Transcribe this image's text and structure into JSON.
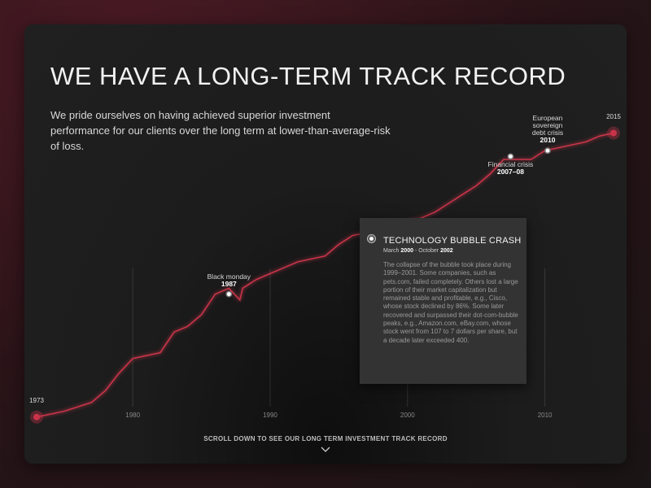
{
  "header": {
    "title": "WE HAVE A LONG-TERM TRACK RECORD",
    "intro": "We pride ourselves on having achieved superior investment performance for our clients over the long term at lower-than-average-risk of loss."
  },
  "chart_data": {
    "type": "line",
    "color": "#c8344a",
    "x": [
      1973,
      1975,
      1977,
      1978,
      1979,
      1980,
      1981,
      1982,
      1983,
      1984,
      1985,
      1986,
      1987,
      1987.8,
      1988,
      1989,
      1990,
      1991,
      1992,
      1993,
      1994,
      1995,
      1996,
      1997,
      1998,
      1999,
      2000,
      2001,
      2002,
      2003,
      2004,
      2005,
      2006,
      2007,
      2008,
      2009,
      2010,
      2011,
      2012,
      2013,
      2014,
      2015
    ],
    "values": [
      2,
      4,
      7,
      11,
      17,
      22,
      23,
      24,
      31,
      33,
      37,
      44,
      46,
      42,
      46,
      49,
      51,
      53,
      55,
      56,
      57,
      61,
      64,
      65,
      67,
      68,
      69,
      70,
      72,
      75,
      78,
      81,
      85,
      90,
      90,
      90,
      93,
      94,
      95,
      96,
      98,
      99
    ],
    "xlim": [
      1973,
      2015
    ],
    "ylim": [
      0,
      100
    ],
    "xticks": [
      1980,
      1990,
      2000,
      2010
    ],
    "events": [
      {
        "name": [
          "Black monday"
        ],
        "date_label": "1987",
        "x": 1987,
        "value": 44
      },
      {
        "name": [
          "Financial crisis"
        ],
        "date_label": "2007–08",
        "x": 2007.5,
        "value": 91
      },
      {
        "name": [
          "European",
          "sovereign",
          "debt crisis"
        ],
        "date_label": "2010",
        "x": 2010.2,
        "value": 93
      }
    ]
  },
  "tooltip": {
    "title": "TECHNOLOGY BUBBLE CRASH",
    "dates": [
      "March ",
      "2000",
      " - October ",
      "2002"
    ],
    "body": "The collapse of the bubble took place during 1999–2001. Some companies, such as pets.com, failed completely. Others lost a large portion of their market capitalization but remained stable and profitable, e.g., Cisco, whose stock declined by 86%. Some later recovered and surpassed their dot-com-bubble peaks, e.g., Amazon.com, eBay.com, whose stock went from 107 to 7 dollars per share, but a decade later exceeded 400."
  },
  "footer": {
    "scroll": "SCROLL DOWN TO SEE OUR LONG TERM INVESTMENT TRACK RECORD"
  }
}
